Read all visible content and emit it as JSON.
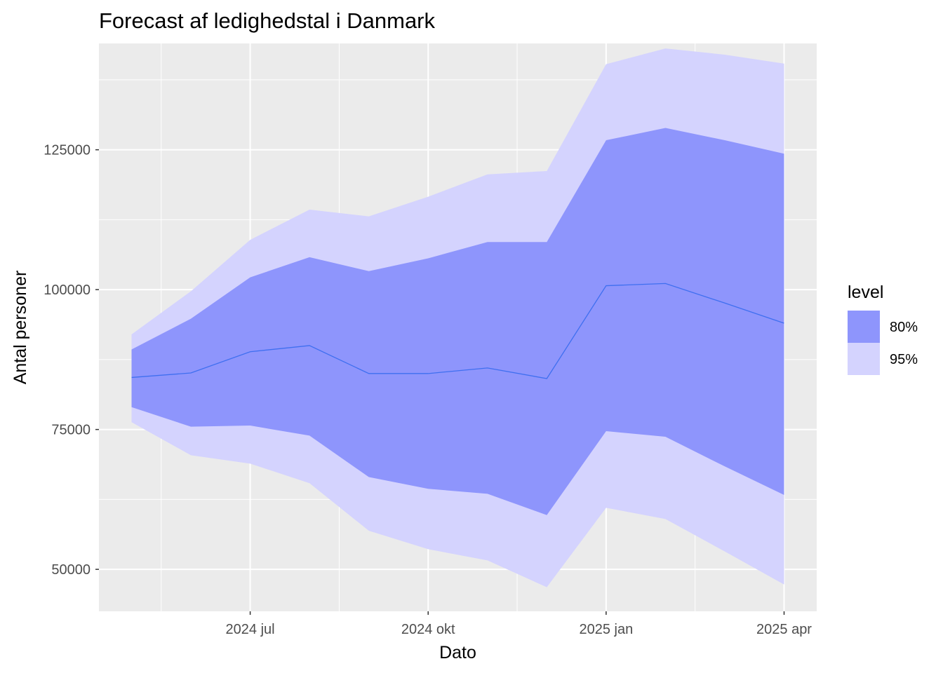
{
  "chart_data": {
    "type": "area",
    "title": "Forecast af ledighedstal i Danmark",
    "xlabel": "Dato",
    "ylabel": "Antal personer",
    "x": [
      "2024-05",
      "2024-06",
      "2024-07",
      "2024-08",
      "2024-09",
      "2024-10",
      "2024-11",
      "2024-12",
      "2025-01",
      "2025-02",
      "2025-03",
      "2025-04"
    ],
    "x_ticks": [
      {
        "value": "2024-07",
        "label": "2024 jul"
      },
      {
        "value": "2024-10",
        "label": "2024 okt"
      },
      {
        "value": "2025-01",
        "label": "2025 jan"
      },
      {
        "value": "2025-04",
        "label": "2025 apr"
      }
    ],
    "y_ticks": [
      50000,
      75000,
      100000,
      125000
    ],
    "ylim": [
      42500,
      144000
    ],
    "grid": true,
    "legend": {
      "title": "level",
      "position": "right",
      "entries": [
        {
          "label": "80%",
          "color": "#8e95fc"
        },
        {
          "label": "95%",
          "color": "#d4d3fe"
        }
      ]
    },
    "series": [
      {
        "values": [
          84300,
          85100,
          88900,
          90000,
          85000,
          85000,
          86000,
          84100,
          100700,
          101100,
          97600,
          94000
        ],
        "color": "#3f6ff0"
      }
    ],
    "intervals": [
      {
        "level": "95%",
        "lower": [
          76300,
          70400,
          68900,
          65400,
          56900,
          53600,
          51600,
          46800,
          61000,
          59000,
          53200,
          47300
        ],
        "upper": [
          92000,
          99700,
          108900,
          114300,
          113100,
          116600,
          120600,
          121200,
          140300,
          143100,
          142000,
          140400
        ]
      },
      {
        "level": "80%",
        "lower": [
          79000,
          75500,
          75700,
          73900,
          66500,
          64400,
          63500,
          59700,
          74700,
          73700,
          68400,
          63300
        ],
        "upper": [
          89300,
          94800,
          102200,
          105800,
          103300,
          105600,
          108500,
          108500,
          126700,
          128900,
          126700,
          124300
        ]
      }
    ]
  }
}
